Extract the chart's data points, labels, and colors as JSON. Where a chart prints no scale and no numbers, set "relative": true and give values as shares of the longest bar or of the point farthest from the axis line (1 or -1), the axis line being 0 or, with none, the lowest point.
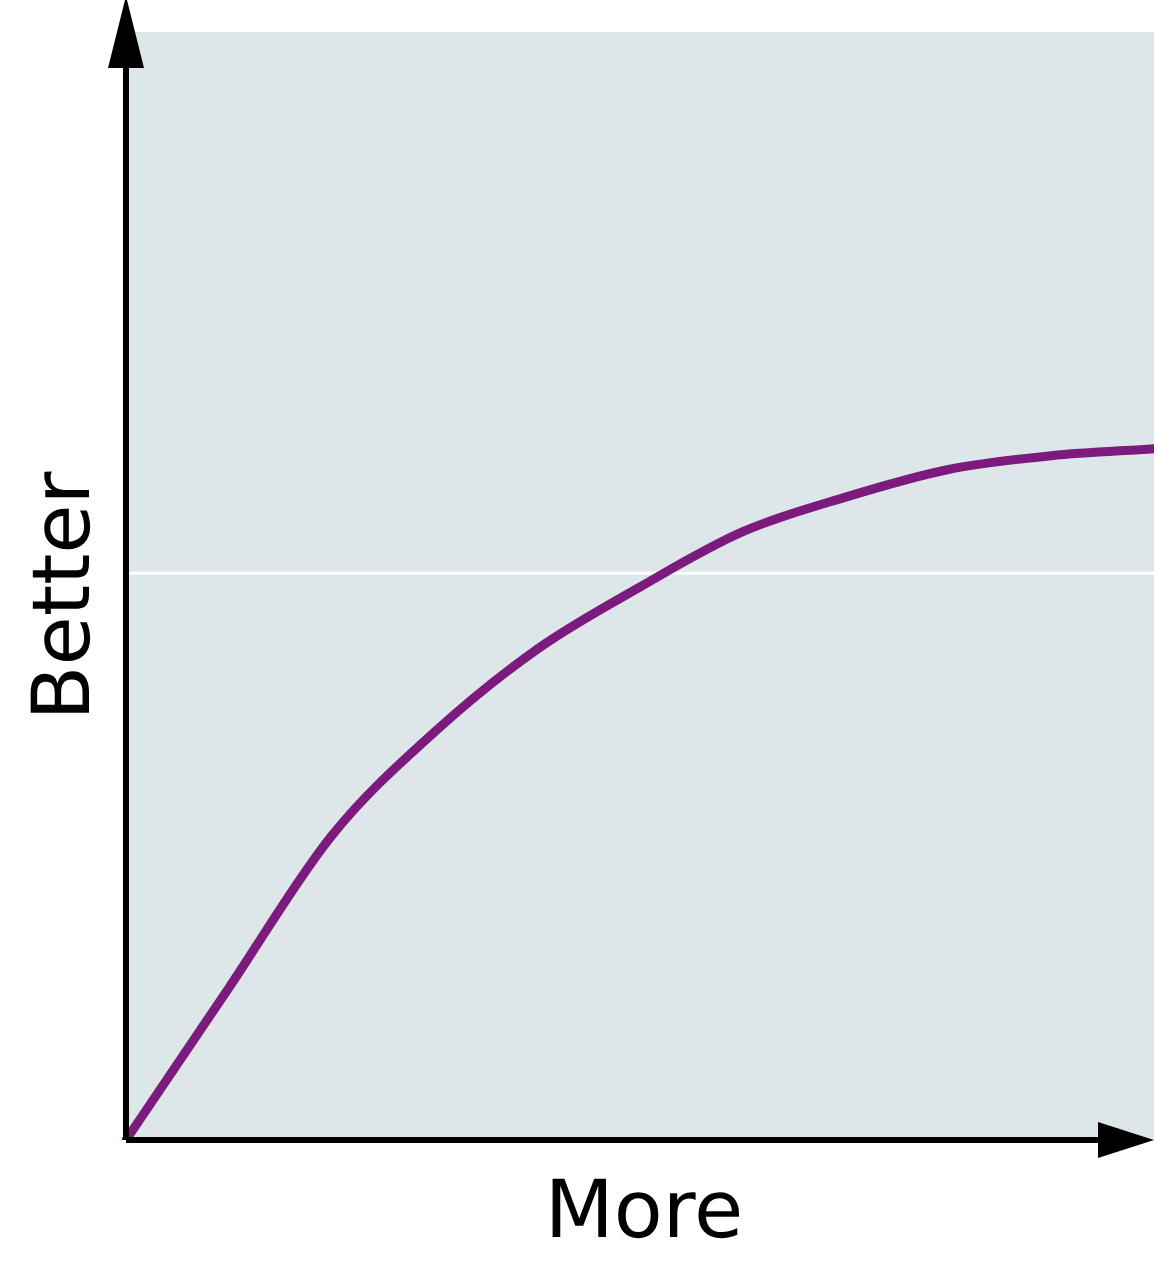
{
  "chart_data": {
    "type": "line",
    "relative": true,
    "xlabel": "More",
    "ylabel": "Better",
    "categories": [
      null,
      null,
      null,
      null,
      null,
      null,
      null,
      null,
      null,
      null,
      null
    ],
    "series": [
      {
        "color": "#7d1a7e",
        "values": [
          0,
          0.22,
          0.44,
          0.59,
          0.71,
          0.8,
          0.88,
          0.93,
          0.97,
          0.99,
          1
        ]
      }
    ],
    "ref_lines": [
      {
        "axis": "y",
        "value": 0.82,
        "color": "#ffffff"
      }
    ],
    "legend": false,
    "marker": "none",
    "line_style": "solid"
  }
}
